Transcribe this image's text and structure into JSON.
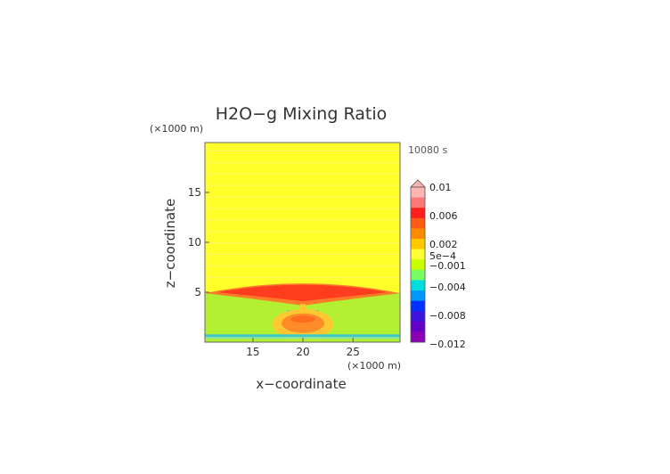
{
  "chart_data": {
    "type": "heatmap",
    "title": "H2O−g Mixing Ratio",
    "time_label": "10080 s",
    "xlabel": "x−coordinate",
    "ylabel": "z−coordinate",
    "x_unit": "(×1000 m)",
    "y_unit": "(×1000 m)",
    "xlim": [
      10.2,
      29.7
    ],
    "ylim": [
      0,
      20
    ],
    "x_ticks": [
      15,
      20,
      25
    ],
    "y_ticks": [
      5,
      10,
      15
    ],
    "colorbar": {
      "labels": [
        "0.01",
        "0.006",
        "0.002",
        "5e−4",
        "−0.001",
        "−0.004",
        "−0.008",
        "−0.012"
      ],
      "colors": [
        "#ffb4b4",
        "#ff7878",
        "#ff1e1e",
        "#ff5a14",
        "#ff8c00",
        "#ffc800",
        "#ffff32",
        "#c8ff00",
        "#78ff64",
        "#00dcdc",
        "#0096ff",
        "#0032ff",
        "#3c14dc",
        "#6400c8",
        "#8c00b4"
      ]
    },
    "regions": {
      "background_value": "5e−4",
      "upper_layer_color": "#ffff2a",
      "lower_layer_color": "#b4f032",
      "moist_layer": {
        "z_base": 4.9,
        "z_top": 5.8,
        "x_center": 20,
        "color": "#ff3c1e"
      },
      "plume_color": "#ffc832",
      "plume_core_color": "#ff8c28",
      "surface_band": {
        "z": 0.6,
        "color": "#3cc8c8"
      }
    }
  }
}
